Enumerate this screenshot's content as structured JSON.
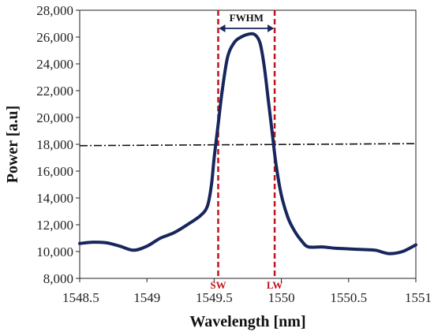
{
  "chart_data": {
    "type": "line",
    "title": "",
    "xlabel": "Wavelength [nm]",
    "ylabel": "Power [a.u]",
    "xlim": [
      1548.5,
      1551
    ],
    "ylim": [
      8000,
      28000
    ],
    "x_ticks": [
      "1548.5",
      "1549",
      "1549.5",
      "1550",
      "1550.5",
      "1551"
    ],
    "x_tick_values": [
      1548.5,
      1549,
      1549.5,
      1550,
      1550.5,
      1551
    ],
    "y_ticks": [
      "8,000",
      "10,000",
      "12,000",
      "14,000",
      "16,000",
      "18,000",
      "20,000",
      "22,000",
      "24,000",
      "26,000",
      "28,000"
    ],
    "y_tick_values": [
      8000,
      10000,
      12000,
      14000,
      16000,
      18000,
      20000,
      22000,
      24000,
      26000,
      28000
    ],
    "grid": false,
    "legend": "none",
    "series": [
      {
        "color": "#17265c",
        "x": [
          1548.5,
          1548.6,
          1548.7,
          1548.8,
          1548.9,
          1549.0,
          1549.1,
          1549.2,
          1549.3,
          1549.4,
          1549.45,
          1549.48,
          1549.5,
          1549.53,
          1549.56,
          1549.6,
          1549.65,
          1549.7,
          1549.75,
          1549.8,
          1549.84,
          1549.87,
          1549.9,
          1549.93,
          1549.96,
          1550.0,
          1550.05,
          1550.1,
          1550.15,
          1550.2,
          1550.3,
          1550.4,
          1550.5,
          1550.6,
          1550.7,
          1550.8,
          1550.9,
          1551.0
        ],
        "y": [
          10600,
          10700,
          10650,
          10400,
          10100,
          10400,
          11000,
          11400,
          12000,
          12700,
          13400,
          15000,
          17000,
          19500,
          22000,
          24500,
          25600,
          26000,
          26200,
          26200,
          25600,
          24000,
          21500,
          19000,
          16500,
          14200,
          12500,
          11500,
          10800,
          10350,
          10350,
          10250,
          10200,
          10150,
          10100,
          9850,
          10000,
          10500
        ]
      }
    ],
    "threshold": {
      "y_start": 17900,
      "y_end": 18050,
      "color": "#111111"
    },
    "markers": [
      {
        "label": "SW",
        "x": 1549.53,
        "color": "#c0141c"
      },
      {
        "label": "LW",
        "x": 1549.95,
        "color": "#c0141c"
      }
    ],
    "fwhm_label": "FWHM",
    "fwhm_color": "#17265c"
  }
}
